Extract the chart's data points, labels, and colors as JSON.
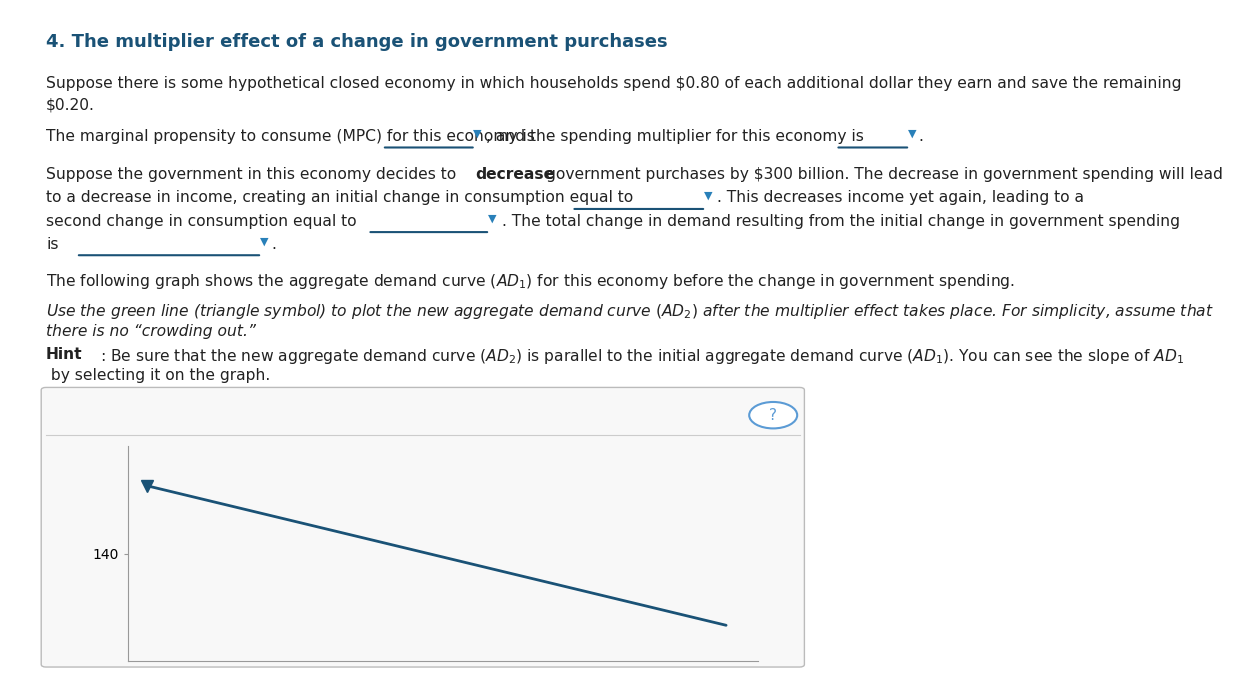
{
  "title": "4. The multiplier effect of a change in government purchases",
  "title_color": "#1a5276",
  "background_color": "#ffffff",
  "ad1_color": "#1a5276",
  "ad1_linewidth": 2.0,
  "question_mark_color": "#5b9bd5",
  "underline_color": "#1a5276",
  "dropdown_arrow_color": "#2980b9",
  "graph_ytick": 140,
  "line1": "Suppose there is some hypothetical closed economy in which households spend $0.80 of each additional dollar they earn and save the remaining",
  "line2": "$0.20.",
  "mpc_prefix": "The marginal propensity to consume (MPC) for this economy is",
  "mpc_mid": ", and the spending multiplier for this economy is",
  "mpc_end": ".",
  "suppose_pre": "Suppose the government in this economy decides to",
  "suppose_bold": "decrease",
  "suppose_post": "government purchases by $300 billion. The decrease in government spending will lead",
  "decrease_line1_pre": "to a decrease in income, creating an initial change in consumption equal to",
  "decrease_line1_post": ". This decreases income yet again, leading to a",
  "decrease_line2_pre": "second change in consumption equal to",
  "decrease_line2_post": ". The total change in demand resulting from the initial change in government spending",
  "is_line": "is",
  "is_end": ".",
  "graph_intro": "The following graph shows the aggregate demand curve $(AD_1)$ for this economy before the change in government spending.",
  "italic_line1": "Use the green line (triangle symbol) to plot the new aggregate demand curve $(AD_2)$ after the multiplier effect takes place. For simplicity, assume that",
  "italic_line2": "there is no",
  "italic_line2b": "crowding out.",
  "hint_bold": "Hint",
  "hint_text": ": Be sure that the new aggregate demand curve $(AD_2)$ is parallel to the initial aggregate demand curve $(AD_1)$. You can see the slope of $AD_1$",
  "hint_line2": " by selecting it on the graph."
}
